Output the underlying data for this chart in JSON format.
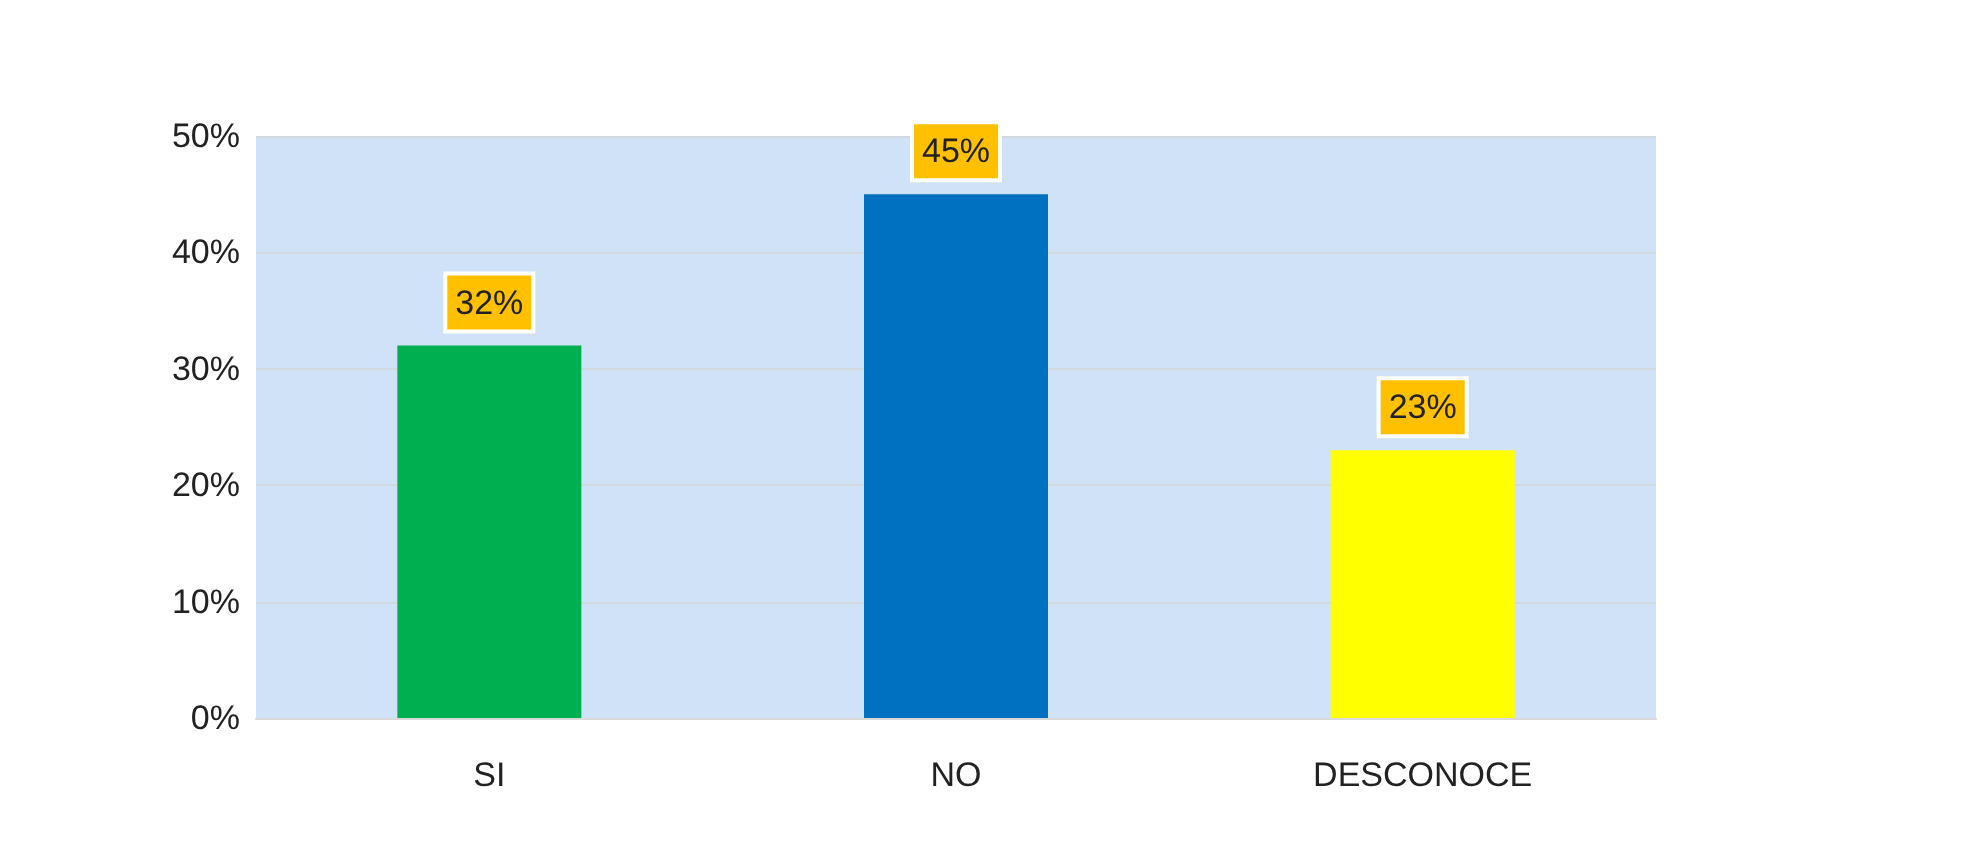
{
  "chart_data": {
    "type": "bar",
    "categories": [
      "SI",
      "NO",
      "DESCONOCE"
    ],
    "values": [
      32,
      45,
      23
    ],
    "colors": [
      "#00b050",
      "#0070c0",
      "#ffff00"
    ],
    "value_labels": [
      "32%",
      "45%",
      "23%"
    ],
    "ylim": [
      0,
      50
    ],
    "yticks": [
      {
        "value": 0,
        "label": "0%"
      },
      {
        "value": 10,
        "label": "10%"
      },
      {
        "value": 20,
        "label": "20%"
      },
      {
        "value": 30,
        "label": "30%"
      },
      {
        "value": 40,
        "label": "40%"
      },
      {
        "value": 50,
        "label": "50%"
      }
    ],
    "grid": "y"
  }
}
